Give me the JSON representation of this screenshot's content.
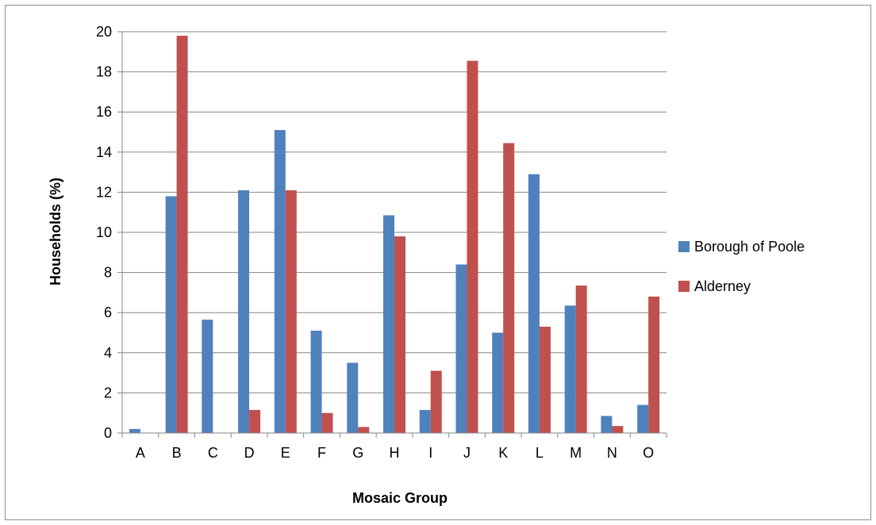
{
  "chart_data": {
    "type": "bar",
    "title": "",
    "xlabel": "Mosaic Group",
    "ylabel": "Households (%)",
    "ylim": [
      0,
      20
    ],
    "yticks": [
      0,
      2,
      4,
      6,
      8,
      10,
      12,
      14,
      16,
      18,
      20
    ],
    "grid": true,
    "legend_position": "right",
    "categories": [
      "A",
      "B",
      "C",
      "D",
      "E",
      "F",
      "G",
      "H",
      "I",
      "J",
      "K",
      "L",
      "M",
      "N",
      "O"
    ],
    "series": [
      {
        "name": "Borough of Poole",
        "color": "#4F81BD",
        "values": [
          0.2,
          11.8,
          5.65,
          12.1,
          15.1,
          5.1,
          3.5,
          10.85,
          1.15,
          8.4,
          5.0,
          12.9,
          6.35,
          0.85,
          1.4
        ]
      },
      {
        "name": "Alderney",
        "color": "#C0504D",
        "values": [
          0,
          19.8,
          0,
          1.15,
          12.1,
          1.0,
          0.3,
          9.8,
          3.1,
          18.55,
          14.45,
          5.3,
          7.35,
          0.35,
          6.8
        ]
      }
    ]
  }
}
